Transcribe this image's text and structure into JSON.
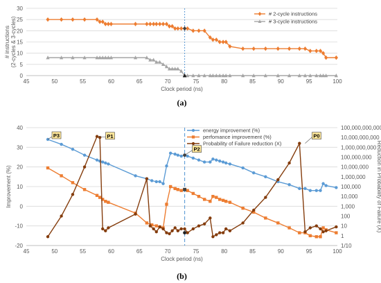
{
  "chart_data": [
    {
      "type": "line",
      "caption": "(a)",
      "xlabel": "Clock period (ns)",
      "ylabel_lines": [
        "# instructions",
        "(2-cycles & 3-cycles)"
      ],
      "xlim": [
        45,
        100
      ],
      "ylim": [
        0,
        30
      ],
      "xticks": [
        45,
        50,
        55,
        60,
        65,
        70,
        75,
        80,
        85,
        90,
        95,
        100
      ],
      "yticks": [
        0,
        5,
        10,
        15,
        20,
        25,
        30
      ],
      "grid": true,
      "legend_position": "top-right",
      "vline_x": 73,
      "series": [
        {
          "name": "# 2-cycle instructions",
          "color": "#ED7D31",
          "marker": "diamond",
          "x": [
            48.8,
            51.2,
            53.2,
            55.3,
            57.5,
            58.0,
            58.5,
            59.0,
            59.5,
            60.0,
            64.3,
            66.3,
            66.9,
            67.5,
            68.0,
            68.6,
            69.2,
            69.8,
            70.3,
            70.8,
            71.3,
            71.8,
            72.4,
            73.0,
            73.5,
            74.5,
            75.5,
            76.5,
            77.5,
            78.0,
            78.6,
            79.2,
            79.8,
            80.3,
            81.0,
            83.3,
            85.2,
            87.3,
            89.5,
            91.5,
            93.3,
            94.3,
            95.2,
            96.3,
            97.0,
            97.5,
            98.0,
            99.8
          ],
          "values": [
            25,
            25,
            25,
            25,
            25,
            24,
            24,
            23,
            23,
            23,
            23,
            23,
            23,
            23,
            23,
            23,
            23,
            23,
            22,
            22,
            21,
            21,
            21,
            21,
            21,
            20,
            20,
            20,
            17,
            16,
            16,
            15,
            15,
            15,
            13,
            12,
            12,
            12,
            12,
            12,
            12,
            12,
            11,
            11,
            11,
            10,
            8,
            8
          ]
        },
        {
          "name": "# 3-cycle instructions",
          "color": "#A5A5A5",
          "marker": "triangle",
          "x": [
            48.8,
            51.2,
            53.2,
            55.3,
            57.5,
            58.0,
            58.5,
            59.0,
            59.5,
            60.0,
            64.3,
            66.3,
            66.9,
            67.5,
            68.0,
            68.6,
            69.2,
            69.8,
            70.3,
            70.8,
            71.3,
            71.8,
            72.4,
            73.0,
            73.5,
            74.5,
            75.5,
            76.5,
            77.5,
            78.0,
            78.6,
            79.2,
            79.8,
            80.3,
            81.0,
            83.3,
            85.2,
            87.3,
            89.5,
            91.5,
            93.3,
            94.3,
            95.2,
            96.3,
            97.0,
            97.5,
            98.0,
            99.8
          ],
          "values": [
            8,
            8,
            8,
            8,
            8,
            8,
            8,
            8,
            8,
            8,
            8,
            8,
            7,
            7,
            6,
            6,
            5,
            4,
            3,
            3,
            3,
            3,
            2,
            0,
            0,
            0,
            0,
            0,
            0,
            0,
            0,
            0,
            0,
            0,
            0,
            0,
            0,
            0,
            0,
            0,
            0,
            0,
            0,
            0,
            0,
            0,
            0,
            0
          ]
        }
      ]
    },
    {
      "type": "line",
      "caption": "(b)",
      "xlabel": "Clock period (ns)",
      "ylabel": "Improvement (%)",
      "y2label": "Reduction in Probability of Failure (X)",
      "xlim": [
        45,
        100
      ],
      "ylim": [
        -20,
        40
      ],
      "xticks": [
        45,
        50,
        55,
        60,
        65,
        70,
        75,
        80,
        85,
        90,
        95,
        100
      ],
      "yticks": [
        -20,
        -10,
        0,
        10,
        20,
        30,
        40
      ],
      "y2ticks": [
        "1/10",
        "1",
        "10",
        "100",
        "1,000",
        "10,000",
        "100,000",
        "1,000,000",
        "10,000,000",
        "100,000,000",
        "1,000,000,000",
        "10,000,000,000",
        "100,000,000,000"
      ],
      "grid": true,
      "legend_position": "top-center",
      "vline_x": 73,
      "annotations": [
        "P3",
        "P1",
        "P2",
        "P0"
      ],
      "series": [
        {
          "name": "energy improvement (%)",
          "color": "#5B9BD5",
          "marker": "circle",
          "x": [
            48.8,
            51.2,
            53.2,
            55.3,
            57.5,
            58.0,
            58.5,
            59.0,
            59.5,
            64.3,
            66.3,
            67.2,
            68.0,
            68.6,
            69.2,
            69.8,
            70.5,
            71.3,
            71.8,
            72.4,
            73.0,
            73.5,
            74.5,
            75.5,
            76.5,
            77.5,
            78.0,
            78.6,
            79.2,
            79.8,
            80.3,
            81.0,
            83.3,
            85.2,
            87.3,
            89.5,
            91.5,
            93.3,
            94.3,
            95.2,
            96.3,
            97.0,
            97.5,
            98.0,
            99.8
          ],
          "values": [
            34,
            31.5,
            29,
            26,
            23.5,
            23,
            22.5,
            22,
            21.5,
            15.5,
            14,
            13,
            12.5,
            12.5,
            11.5,
            20.5,
            27,
            26.5,
            26,
            25.5,
            26,
            25.5,
            24.5,
            23.5,
            22.5,
            22.5,
            24,
            23.5,
            23,
            22.5,
            22,
            21.5,
            19.5,
            17,
            15,
            12.5,
            11,
            9,
            9,
            8,
            8,
            8,
            11.5,
            10.5,
            9.5
          ]
        },
        {
          "name": "perfomance improvement (%)",
          "color": "#ED7D31",
          "marker": "square",
          "x": [
            48.8,
            51.2,
            53.2,
            55.3,
            57.5,
            58.0,
            58.5,
            59.0,
            59.5,
            64.3,
            66.3,
            67.2,
            68.0,
            68.6,
            69.2,
            69.8,
            70.5,
            71.3,
            71.8,
            72.4,
            73.0,
            73.5,
            74.5,
            75.5,
            76.5,
            77.5,
            78.0,
            78.6,
            79.2,
            79.8,
            80.3,
            81.0,
            83.3,
            85.2,
            87.3,
            89.5,
            91.5,
            93.3,
            94.3,
            95.2,
            96.3,
            97.0,
            97.5,
            98.0,
            99.8
          ],
          "values": [
            19.5,
            15.5,
            12,
            8.5,
            5.5,
            4.5,
            3.5,
            2.5,
            2,
            -3.5,
            -8.5,
            -9.5,
            -10,
            -10.5,
            -11,
            1,
            10,
            9,
            8.5,
            8,
            8.5,
            8,
            6.5,
            5,
            3.5,
            2.5,
            5,
            4.5,
            3.5,
            3,
            2.5,
            2,
            -1,
            -3,
            -6,
            -8.5,
            -11,
            -13.5,
            -13.5,
            -15,
            -15.5,
            -15.5,
            -11,
            -12,
            -13.5
          ]
        },
        {
          "name": "Probability of Failure reduction (X)",
          "color": "#843C0C",
          "marker": "circle",
          "x": [
            48.8,
            51.2,
            53.2,
            55.3,
            57.5,
            58.0,
            58.5,
            59.0,
            59.5,
            64.3,
            66.3,
            66.9,
            67.5,
            68.0,
            68.6,
            69.2,
            69.8,
            70.3,
            70.8,
            71.3,
            71.8,
            72.4,
            73.0,
            73.5,
            74.5,
            75.5,
            76.5,
            77.5,
            78.0,
            78.6,
            79.2,
            79.8,
            80.3,
            81.0,
            83.3,
            85.2,
            87.3,
            89.5,
            91.5,
            93.3,
            94.3,
            95.2,
            96.3,
            97.0,
            97.5,
            98.0,
            99.8
          ],
          "values": [
            -15.5,
            -5,
            6,
            20,
            35.5,
            35,
            -11.5,
            -12.5,
            -11,
            -4,
            14,
            -10,
            -11.5,
            -13,
            -10.5,
            -11.5,
            -13.5,
            -14,
            -12.5,
            -11,
            -12.5,
            -11.5,
            -11.5,
            -13.5,
            -11.5,
            -10,
            -9,
            -6,
            -15.5,
            -14.5,
            -13.5,
            -13.5,
            -11.5,
            -12.5,
            -8.5,
            -2,
            4.5,
            13.5,
            22,
            32,
            -13,
            -11,
            -10,
            -11.5,
            -13,
            -12.5,
            -10.5
          ]
        }
      ]
    }
  ]
}
